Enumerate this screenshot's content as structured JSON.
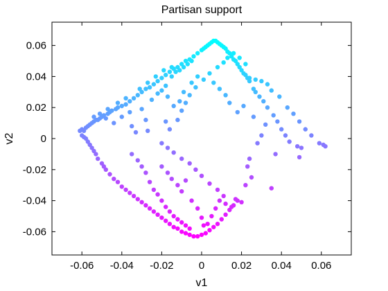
{
  "chart_data": {
    "type": "scatter",
    "title": "Partisan support",
    "xlabel": "v1",
    "ylabel": "v2",
    "xlim": [
      -0.075,
      0.075
    ],
    "ylim": [
      -0.075,
      0.075
    ],
    "xticks": [
      -0.06,
      -0.04,
      -0.02,
      0,
      0.02,
      0.04,
      0.06
    ],
    "xtick_labels": [
      "-0.06",
      "-0.04",
      "-0.02",
      "0",
      "0.02",
      "0.04",
      "0.06"
    ],
    "yticks": [
      -0.06,
      -0.04,
      -0.02,
      0,
      0.02,
      0.04,
      0.06
    ],
    "ytick_labels": [
      "-0.06",
      "-0.04",
      "-0.02",
      "0",
      "0.02",
      "0.04",
      "0.06"
    ],
    "grid": false,
    "legend": "none",
    "colormap": "cool",
    "color_low": "#ff00ff",
    "color_high": "#00ffff",
    "points": [
      [
        -0.061,
        0.005
      ],
      [
        -0.06,
        0.006
      ],
      [
        -0.059,
        0.005
      ],
      [
        -0.058,
        0.007
      ],
      [
        -0.057,
        0.008
      ],
      [
        -0.056,
        0.009
      ],
      [
        -0.055,
        0.01
      ],
      [
        -0.054,
        0.011
      ],
      [
        -0.053,
        0.012
      ],
      [
        -0.052,
        0.012
      ],
      [
        -0.051,
        0.013
      ],
      [
        -0.05,
        0.014
      ],
      [
        -0.049,
        0.015
      ],
      [
        -0.047,
        0.016
      ],
      [
        -0.046,
        0.017
      ],
      [
        -0.045,
        0.018
      ],
      [
        -0.043,
        0.019
      ],
      [
        -0.042,
        0.02
      ],
      [
        -0.04,
        0.021
      ],
      [
        -0.038,
        0.022
      ],
      [
        -0.036,
        0.024
      ],
      [
        -0.034,
        0.026
      ],
      [
        -0.032,
        0.028
      ],
      [
        -0.03,
        0.03
      ],
      [
        -0.028,
        0.032
      ],
      [
        -0.026,
        0.033
      ],
      [
        -0.024,
        0.035
      ],
      [
        -0.022,
        0.037
      ],
      [
        -0.02,
        0.039
      ],
      [
        -0.018,
        0.041
      ],
      [
        -0.016,
        0.043
      ],
      [
        -0.014,
        0.045
      ],
      [
        -0.012,
        0.046
      ],
      [
        -0.01,
        0.048
      ],
      [
        -0.008,
        0.05
      ],
      [
        -0.006,
        0.051
      ],
      [
        -0.004,
        0.053
      ],
      [
        -0.002,
        0.055
      ],
      [
        0.0,
        0.057
      ],
      [
        0.001,
        0.058
      ],
      [
        0.002,
        0.059
      ],
      [
        0.003,
        0.06
      ],
      [
        0.004,
        0.061
      ],
      [
        0.005,
        0.062
      ],
      [
        0.006,
        0.063
      ],
      [
        0.007,
        0.063
      ],
      [
        0.008,
        0.062
      ],
      [
        0.009,
        0.061
      ],
      [
        0.01,
        0.06
      ],
      [
        0.011,
        0.059
      ],
      [
        0.012,
        0.058
      ],
      [
        0.013,
        0.056
      ],
      [
        0.014,
        0.055
      ],
      [
        0.015,
        0.053
      ],
      [
        0.016,
        0.051
      ],
      [
        0.017,
        0.05
      ],
      [
        0.018,
        0.048
      ],
      [
        0.019,
        0.046
      ],
      [
        0.02,
        0.044
      ],
      [
        0.021,
        0.042
      ],
      [
        0.022,
        0.041
      ],
      [
        0.023,
        0.039
      ],
      [
        0.024,
        0.037
      ],
      [
        0.026,
        0.032
      ],
      [
        0.027,
        0.03
      ],
      [
        0.029,
        0.027
      ],
      [
        0.031,
        0.024
      ],
      [
        0.033,
        0.02
      ],
      [
        0.036,
        0.015
      ],
      [
        0.038,
        0.011
      ],
      [
        0.04,
        0.006
      ],
      [
        0.042,
        0.002
      ],
      [
        0.044,
        -0.002
      ],
      [
        0.048,
        -0.005
      ],
      [
        0.05,
        -0.006
      ],
      [
        0.055,
        0.002
      ],
      [
        0.059,
        -0.003
      ],
      [
        0.061,
        -0.004
      ],
      [
        0.062,
        -0.005
      ],
      [
        -0.06,
        0.002
      ],
      [
        -0.059,
        0.001
      ],
      [
        -0.058,
        0.0
      ],
      [
        -0.057,
        -0.002
      ],
      [
        -0.056,
        -0.004
      ],
      [
        -0.055,
        -0.006
      ],
      [
        -0.054,
        -0.008
      ],
      [
        -0.053,
        -0.01
      ],
      [
        -0.052,
        -0.013
      ],
      [
        -0.05,
        -0.016
      ],
      [
        -0.049,
        -0.018
      ],
      [
        -0.048,
        -0.02
      ],
      [
        -0.046,
        -0.023
      ],
      [
        -0.044,
        -0.026
      ],
      [
        -0.042,
        -0.028
      ],
      [
        -0.04,
        -0.031
      ],
      [
        -0.038,
        -0.033
      ],
      [
        -0.036,
        -0.035
      ],
      [
        -0.034,
        -0.037
      ],
      [
        -0.032,
        -0.039
      ],
      [
        -0.03,
        -0.041
      ],
      [
        -0.028,
        -0.043
      ],
      [
        -0.026,
        -0.045
      ],
      [
        -0.024,
        -0.047
      ],
      [
        -0.022,
        -0.049
      ],
      [
        -0.02,
        -0.051
      ],
      [
        -0.018,
        -0.053
      ],
      [
        -0.016,
        -0.055
      ],
      [
        -0.014,
        -0.057
      ],
      [
        -0.012,
        -0.058
      ],
      [
        -0.01,
        -0.06
      ],
      [
        -0.008,
        -0.061
      ],
      [
        -0.006,
        -0.062
      ],
      [
        -0.004,
        -0.063
      ],
      [
        -0.002,
        -0.063
      ],
      [
        0.0,
        -0.062
      ],
      [
        0.002,
        -0.061
      ],
      [
        0.004,
        -0.059
      ],
      [
        0.006,
        -0.057
      ],
      [
        0.008,
        -0.055
      ],
      [
        0.01,
        -0.052
      ],
      [
        0.012,
        -0.049
      ],
      [
        0.014,
        -0.046
      ],
      [
        0.016,
        -0.043
      ],
      [
        0.018,
        -0.04
      ],
      [
        -0.048,
        0.013
      ],
      [
        -0.044,
        0.01
      ],
      [
        -0.04,
        0.014
      ],
      [
        -0.036,
        0.017
      ],
      [
        -0.035,
        0.008
      ],
      [
        -0.033,
        0.004
      ],
      [
        -0.03,
        0.019
      ],
      [
        -0.028,
        0.012
      ],
      [
        -0.027,
        0.005
      ],
      [
        -0.025,
        0.025
      ],
      [
        -0.022,
        0.029
      ],
      [
        -0.02,
        0.031
      ],
      [
        -0.018,
        0.034
      ],
      [
        -0.017,
        0.027
      ],
      [
        -0.015,
        0.04
      ],
      [
        -0.013,
        0.043
      ],
      [
        -0.011,
        0.044
      ],
      [
        -0.009,
        0.046
      ],
      [
        -0.007,
        0.048
      ],
      [
        -0.005,
        0.05
      ],
      [
        -0.035,
        -0.01
      ],
      [
        -0.032,
        -0.014
      ],
      [
        -0.03,
        -0.018
      ],
      [
        -0.028,
        -0.022
      ],
      [
        -0.026,
        -0.028
      ],
      [
        -0.024,
        -0.033
      ],
      [
        -0.022,
        -0.036
      ],
      [
        -0.02,
        -0.04
      ],
      [
        -0.018,
        -0.044
      ],
      [
        -0.016,
        -0.047
      ],
      [
        -0.014,
        -0.05
      ],
      [
        -0.012,
        -0.052
      ],
      [
        -0.01,
        -0.054
      ],
      [
        -0.008,
        -0.056
      ],
      [
        -0.006,
        -0.058
      ],
      [
        0.003,
        -0.055
      ],
      [
        0.005,
        -0.05
      ],
      [
        0.007,
        -0.045
      ],
      [
        0.009,
        -0.04
      ],
      [
        0.012,
        -0.042
      ],
      [
        0.015,
        -0.044
      ],
      [
        0.017,
        -0.039
      ],
      [
        0.02,
        -0.041
      ],
      [
        0.022,
        -0.03
      ],
      [
        0.025,
        -0.025
      ],
      [
        0.035,
        -0.032
      ],
      [
        0.024,
        -0.013
      ],
      [
        0.023,
        -0.018
      ],
      [
        0.037,
        -0.01
      ],
      [
        0.049,
        -0.012
      ],
      [
        0.028,
        -0.003
      ],
      [
        0.03,
        0.002
      ],
      [
        0.032,
        0.009
      ],
      [
        0.026,
        0.014
      ],
      [
        0.021,
        0.021
      ],
      [
        -0.018,
        0.011
      ],
      [
        -0.016,
        0.006
      ],
      [
        -0.012,
        0.012
      ],
      [
        -0.01,
        0.018
      ],
      [
        -0.008,
        0.023
      ],
      [
        -0.006,
        0.028
      ],
      [
        -0.003,
        0.033
      ],
      [
        0.001,
        0.038
      ],
      [
        0.004,
        0.042
      ],
      [
        0.008,
        0.046
      ],
      [
        0.011,
        0.049
      ],
      [
        0.013,
        0.052
      ],
      [
        0.016,
        0.055
      ],
      [
        0.019,
        0.052
      ],
      [
        0.022,
        0.048
      ],
      [
        -0.02,
        -0.018
      ],
      [
        -0.017,
        -0.022
      ],
      [
        -0.015,
        -0.026
      ],
      [
        -0.012,
        -0.03
      ],
      [
        -0.01,
        -0.034
      ],
      [
        -0.008,
        -0.027
      ],
      [
        -0.005,
        -0.04
      ],
      [
        -0.002,
        -0.045
      ],
      [
        0.0,
        -0.051
      ],
      [
        0.001,
        -0.056
      ],
      [
        -0.014,
        0.021
      ],
      [
        -0.011,
        0.024
      ],
      [
        -0.009,
        0.03
      ],
      [
        -0.005,
        0.036
      ],
      [
        -0.002,
        0.04
      ],
      [
        0.006,
        0.036
      ],
      [
        0.009,
        0.032
      ],
      [
        0.012,
        0.028
      ],
      [
        0.014,
        0.023
      ],
      [
        0.018,
        0.017
      ],
      [
        -0.02,
        -0.003
      ],
      [
        -0.017,
        -0.006
      ],
      [
        -0.014,
        -0.009
      ],
      [
        -0.01,
        -0.013
      ],
      [
        -0.006,
        -0.016
      ],
      [
        -0.003,
        -0.02
      ],
      [
        0.0,
        -0.024
      ],
      [
        0.004,
        -0.029
      ],
      [
        0.008,
        -0.033
      ],
      [
        0.011,
        -0.037
      ],
      [
        0.024,
        0.039
      ],
      [
        0.027,
        0.038
      ],
      [
        0.03,
        0.037
      ],
      [
        0.033,
        0.035
      ],
      [
        0.035,
        0.031
      ],
      [
        0.039,
        0.027
      ],
      [
        0.043,
        0.02
      ],
      [
        0.046,
        0.016
      ],
      [
        0.049,
        0.011
      ],
      [
        0.052,
        0.006
      ],
      [
        -0.015,
        0.046
      ],
      [
        -0.019,
        0.044
      ],
      [
        -0.023,
        0.04
      ],
      [
        -0.027,
        0.036
      ],
      [
        -0.031,
        0.032
      ],
      [
        -0.038,
        0.026
      ],
      [
        -0.042,
        0.023
      ],
      [
        -0.047,
        0.019
      ],
      [
        -0.051,
        0.016
      ],
      [
        -0.054,
        0.014
      ]
    ]
  }
}
